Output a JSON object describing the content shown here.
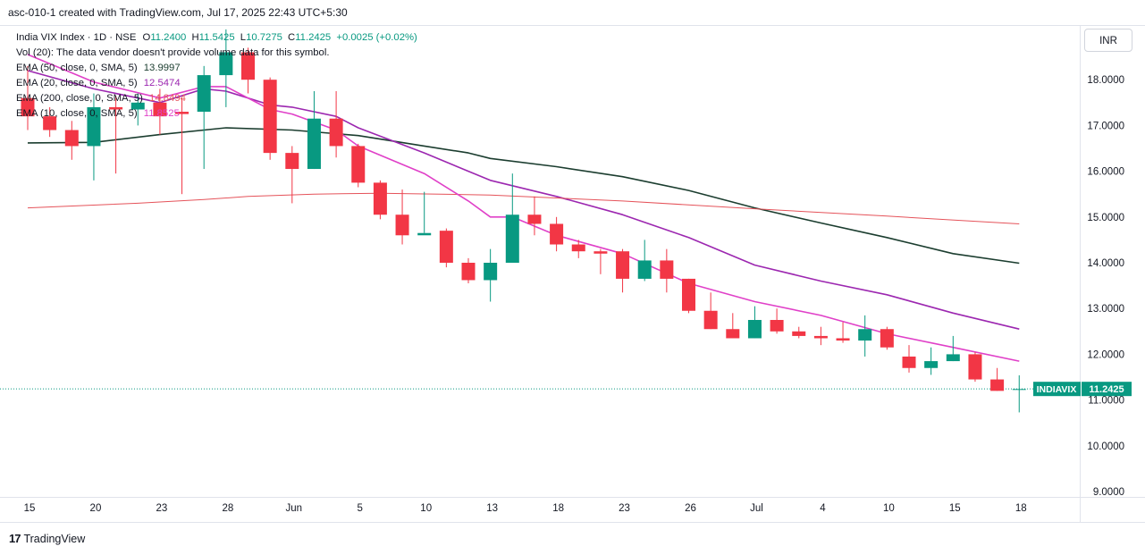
{
  "header": {
    "caption": "asc-010-1 created with TradingView.com, Jul 17, 2025 22:43 UTC+5:30"
  },
  "legend": {
    "symbol": "India VIX Index · 1D · NSE",
    "open_label": "O",
    "open": "11.2400",
    "high_label": "H",
    "high": "11.5425",
    "low_label": "L",
    "low": "10.7275",
    "close_label": "C",
    "close": "11.2425",
    "change": "+0.0025 (+0.02%)",
    "vol": "Vol (20): The data vendor doesn't provide volume data for this symbol.",
    "ema50_label": "EMA (50, close, 0, SMA, 5)",
    "ema50_value": "13.9997",
    "ema20_label": "EMA (20, close, 0, SMA, 5)",
    "ema20_value": "12.5474",
    "ema200_label": "EMA (200, close, 0, SMA, 5)",
    "ema200_value": "14.8494",
    "ema10_label": "EMA (10, close, 0, SMA, 5)",
    "ema10_value": "11.8525"
  },
  "currency_button": "INR",
  "price_tag": {
    "symbol": "INDIAVIX",
    "value": "11.2425"
  },
  "footer": {
    "logo_text": "TradingView",
    "logo_icon": "tradingview-logo-icon"
  },
  "colors": {
    "up": "#089981",
    "down": "#f23645",
    "ema50": "#1b3d2f",
    "ema20": "#9c27b0",
    "ema200": "#e5535a",
    "ema10": "#e040c8",
    "tag_bg": "#089981"
  },
  "chart_data": {
    "type": "candlestick",
    "title": "India VIX Index · 1D · NSE",
    "ylim": [
      8.5,
      19
    ],
    "y_ticks": [
      "9.0000",
      "10.0000",
      "11.0000",
      "12.0000",
      "13.0000",
      "14.0000",
      "15.0000",
      "16.0000",
      "17.0000",
      "18.0000"
    ],
    "x_ticks": [
      {
        "label": "15",
        "i": 0
      },
      {
        "label": "20",
        "i": 3
      },
      {
        "label": "23",
        "i": 6
      },
      {
        "label": "28",
        "i": 9
      },
      {
        "label": "Jun",
        "i": 12
      },
      {
        "label": "5",
        "i": 15
      },
      {
        "label": "10",
        "i": 18
      },
      {
        "label": "13",
        "i": 21
      },
      {
        "label": "18",
        "i": 24
      },
      {
        "label": "23",
        "i": 27
      },
      {
        "label": "26",
        "i": 30
      },
      {
        "label": "Jul",
        "i": 33
      },
      {
        "label": "4",
        "i": 36
      },
      {
        "label": "10",
        "i": 39
      },
      {
        "label": "15",
        "i": 42
      },
      {
        "label": "18",
        "i": 45
      }
    ],
    "candles": [
      {
        "o": 17.6,
        "h": 18.3,
        "l": 16.9,
        "c": 17.2
      },
      {
        "o": 17.2,
        "h": 17.4,
        "l": 16.75,
        "c": 16.9
      },
      {
        "o": 16.9,
        "h": 17.1,
        "l": 16.25,
        "c": 16.55
      },
      {
        "o": 16.55,
        "h": 17.7,
        "l": 15.8,
        "c": 17.4
      },
      {
        "o": 17.4,
        "h": 17.65,
        "l": 15.95,
        "c": 17.35
      },
      {
        "o": 17.35,
        "h": 17.7,
        "l": 17.0,
        "c": 17.5
      },
      {
        "o": 17.5,
        "h": 17.8,
        "l": 16.8,
        "c": 17.2
      },
      {
        "o": 17.3,
        "h": 17.6,
        "l": 15.5,
        "c": 17.25
      },
      {
        "o": 17.3,
        "h": 18.3,
        "l": 16.05,
        "c": 18.1
      },
      {
        "o": 18.1,
        "h": 19.1,
        "l": 17.4,
        "c": 18.6
      },
      {
        "o": 18.6,
        "h": 18.7,
        "l": 17.7,
        "c": 18.0
      },
      {
        "o": 18.0,
        "h": 18.05,
        "l": 16.25,
        "c": 16.4
      },
      {
        "o": 16.4,
        "h": 16.55,
        "l": 15.3,
        "c": 16.05
      },
      {
        "o": 16.05,
        "h": 17.75,
        "l": 16.05,
        "c": 17.15
      },
      {
        "o": 17.15,
        "h": 17.75,
        "l": 16.3,
        "c": 16.55
      },
      {
        "o": 16.55,
        "h": 16.6,
        "l": 15.65,
        "c": 15.75
      },
      {
        "o": 15.75,
        "h": 15.8,
        "l": 14.95,
        "c": 15.05
      },
      {
        "o": 15.05,
        "h": 15.6,
        "l": 14.4,
        "c": 14.6
      },
      {
        "o": 14.6,
        "h": 15.55,
        "l": 14.65,
        "c": 14.65
      },
      {
        "o": 14.7,
        "h": 14.75,
        "l": 13.9,
        "c": 14.0
      },
      {
        "o": 14.0,
        "h": 14.1,
        "l": 13.55,
        "c": 13.62
      },
      {
        "o": 13.62,
        "h": 14.3,
        "l": 13.15,
        "c": 14.0
      },
      {
        "o": 14.0,
        "h": 15.95,
        "l": 14.0,
        "c": 15.05
      },
      {
        "o": 15.05,
        "h": 15.45,
        "l": 14.6,
        "c": 14.85
      },
      {
        "o": 14.85,
        "h": 15.0,
        "l": 14.25,
        "c": 14.4
      },
      {
        "o": 14.4,
        "h": 14.5,
        "l": 14.1,
        "c": 14.25
      },
      {
        "o": 14.25,
        "h": 14.3,
        "l": 13.75,
        "c": 14.2
      },
      {
        "o": 14.25,
        "h": 14.3,
        "l": 13.35,
        "c": 13.65
      },
      {
        "o": 13.65,
        "h": 14.5,
        "l": 13.6,
        "c": 14.05
      },
      {
        "o": 14.05,
        "h": 14.3,
        "l": 13.35,
        "c": 13.65
      },
      {
        "o": 13.65,
        "h": 13.65,
        "l": 12.9,
        "c": 12.95
      },
      {
        "o": 12.95,
        "h": 13.35,
        "l": 12.55,
        "c": 12.55
      },
      {
        "o": 12.55,
        "h": 12.9,
        "l": 12.35,
        "c": 12.35
      },
      {
        "o": 12.35,
        "h": 13.05,
        "l": 12.35,
        "c": 12.75
      },
      {
        "o": 12.75,
        "h": 13.0,
        "l": 12.45,
        "c": 12.5
      },
      {
        "o": 12.5,
        "h": 12.6,
        "l": 12.35,
        "c": 12.4
      },
      {
        "o": 12.4,
        "h": 12.6,
        "l": 12.2,
        "c": 12.35
      },
      {
        "o": 12.35,
        "h": 12.7,
        "l": 12.25,
        "c": 12.3
      },
      {
        "o": 12.3,
        "h": 12.85,
        "l": 11.95,
        "c": 12.55
      },
      {
        "o": 12.55,
        "h": 12.6,
        "l": 12.1,
        "c": 12.15
      },
      {
        "o": 11.95,
        "h": 12.2,
        "l": 11.6,
        "c": 11.7
      },
      {
        "o": 11.7,
        "h": 12.15,
        "l": 11.55,
        "c": 11.85
      },
      {
        "o": 11.85,
        "h": 12.4,
        "l": 11.85,
        "c": 12.0
      },
      {
        "o": 12.0,
        "h": 12.05,
        "l": 11.4,
        "c": 11.45
      },
      {
        "o": 11.45,
        "h": 11.7,
        "l": 11.2,
        "c": 11.2
      },
      {
        "o": 11.24,
        "h": 11.54,
        "l": 10.73,
        "c": 11.24
      }
    ],
    "series": [
      {
        "name": "EMA (50, close, 0, SMA, 5)",
        "color": "#1b3d2f",
        "points": [
          [
            0,
            16.62
          ],
          [
            3,
            16.63
          ],
          [
            6,
            16.8
          ],
          [
            9,
            16.95
          ],
          [
            12,
            16.9
          ],
          [
            15,
            16.78
          ],
          [
            18,
            16.55
          ],
          [
            20,
            16.4
          ],
          [
            21,
            16.28
          ],
          [
            24,
            16.1
          ],
          [
            27,
            15.88
          ],
          [
            30,
            15.58
          ],
          [
            33,
            15.2
          ],
          [
            36,
            14.87
          ],
          [
            39,
            14.55
          ],
          [
            42,
            14.2
          ],
          [
            45,
            13.99
          ]
        ]
      },
      {
        "name": "EMA (20, close, 0, SMA, 5)",
        "color": "#9c27b0",
        "points": [
          [
            0,
            18.2
          ],
          [
            3,
            17.8
          ],
          [
            6,
            17.5
          ],
          [
            8,
            17.8
          ],
          [
            9,
            17.75
          ],
          [
            11,
            17.45
          ],
          [
            12,
            17.4
          ],
          [
            14,
            17.2
          ],
          [
            15,
            16.95
          ],
          [
            18,
            16.4
          ],
          [
            20,
            16.0
          ],
          [
            21,
            15.8
          ],
          [
            24,
            15.45
          ],
          [
            27,
            15.05
          ],
          [
            30,
            14.55
          ],
          [
            33,
            13.95
          ],
          [
            36,
            13.6
          ],
          [
            39,
            13.3
          ],
          [
            42,
            12.9
          ],
          [
            45,
            12.55
          ]
        ]
      },
      {
        "name": "EMA (200, close, 0, SMA, 5)",
        "color": "#e5535a",
        "points": [
          [
            0,
            15.2
          ],
          [
            5,
            15.3
          ],
          [
            8,
            15.38
          ],
          [
            10,
            15.45
          ],
          [
            13,
            15.5
          ],
          [
            16,
            15.52
          ],
          [
            21,
            15.48
          ],
          [
            27,
            15.35
          ],
          [
            33,
            15.18
          ],
          [
            39,
            15.02
          ],
          [
            45,
            14.85
          ]
        ]
      },
      {
        "name": "EMA (10, close, 0, SMA, 5)",
        "color": "#e040c8",
        "points": [
          [
            0,
            18.55
          ],
          [
            3,
            17.95
          ],
          [
            6,
            17.6
          ],
          [
            8,
            17.85
          ],
          [
            9,
            17.85
          ],
          [
            11,
            17.35
          ],
          [
            12,
            17.25
          ],
          [
            14,
            16.9
          ],
          [
            15,
            16.55
          ],
          [
            18,
            15.95
          ],
          [
            20,
            15.35
          ],
          [
            21,
            15.0
          ],
          [
            22,
            15.0
          ],
          [
            24,
            14.6
          ],
          [
            27,
            14.2
          ],
          [
            30,
            13.55
          ],
          [
            33,
            13.15
          ],
          [
            36,
            12.85
          ],
          [
            39,
            12.45
          ],
          [
            42,
            12.15
          ],
          [
            45,
            11.85
          ]
        ]
      }
    ],
    "last_price_line": 11.2425
  }
}
